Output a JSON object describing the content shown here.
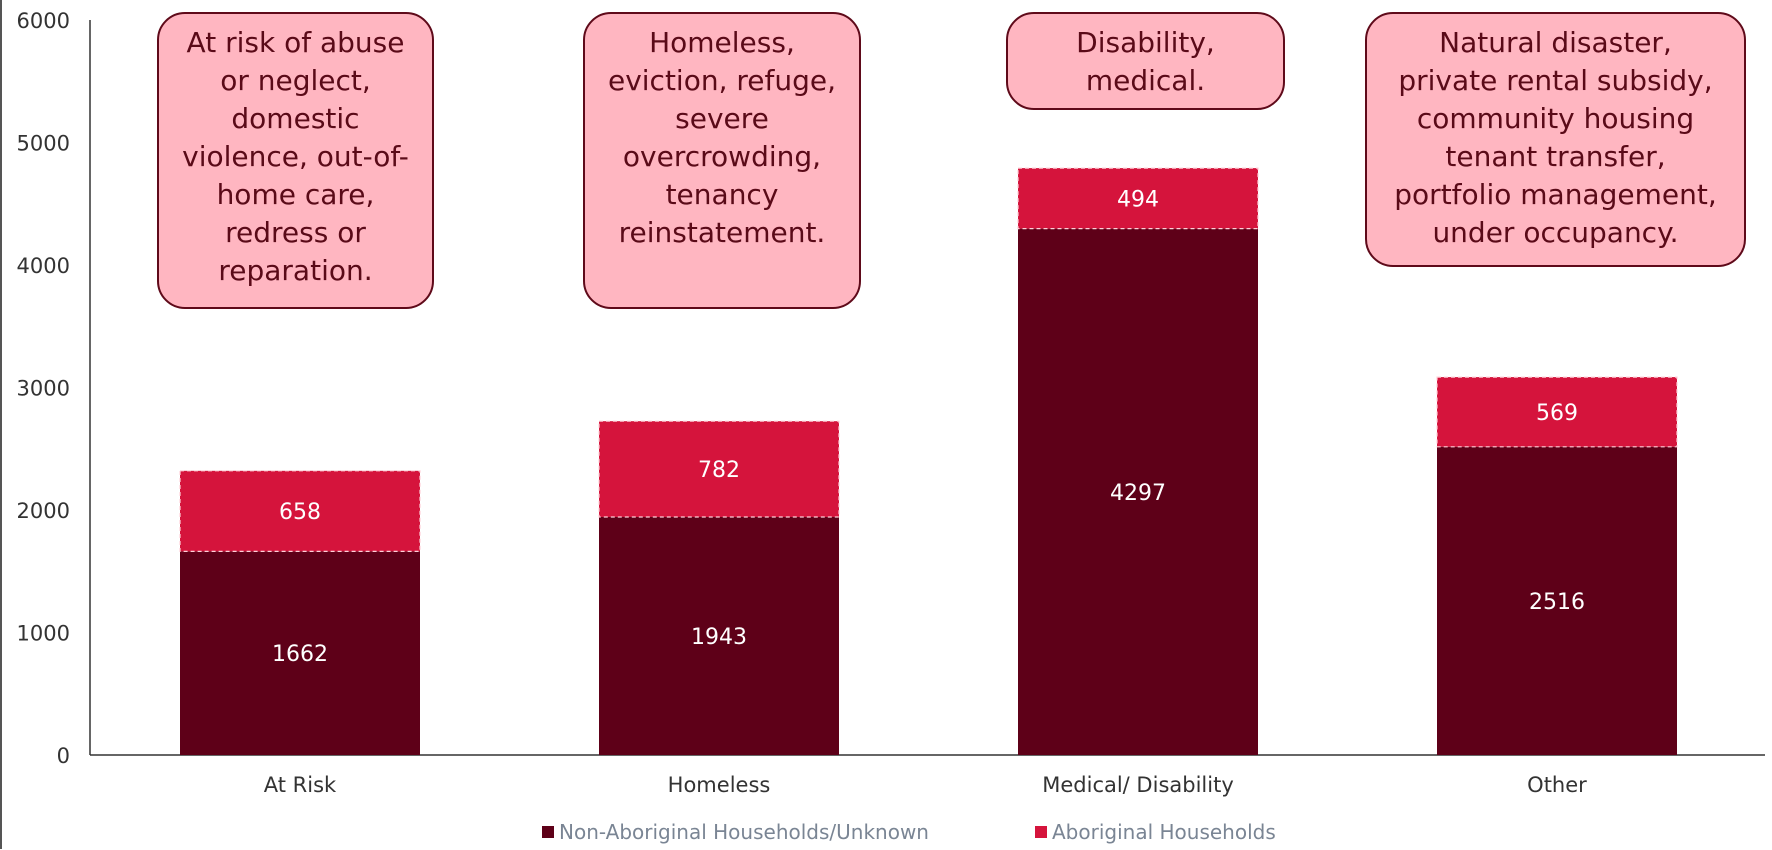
{
  "chart_data": {
    "type": "bar",
    "stacked": true,
    "categories": [
      "At Risk",
      "Homeless",
      "Medical/ Disability",
      "Other"
    ],
    "series": [
      {
        "name": "Non-Aboriginal Households/Unknown",
        "values": [
          1662,
          1943,
          4297,
          2516
        ],
        "color": "#5e0018"
      },
      {
        "name": "Aboriginal Households",
        "values": [
          658,
          782,
          494,
          569
        ],
        "color": "#d5143c"
      }
    ],
    "ylim": [
      0,
      6000
    ],
    "yticks": [
      "0",
      "1000",
      "2000",
      "3000",
      "4000",
      "5000",
      "6000"
    ],
    "grid": false,
    "legend_position": "bottom",
    "annotations": [
      "At risk of abuse\nor neglect,\ndomestic\nviolence, out-of-\nhome care,\nredress or\nreparation.",
      "Homeless,\neviction, refuge,\nsevere\novercrowding,\ntenancy\nreinstatement.",
      "Disability,\nmedical.",
      "Natural disaster,\nprivate rental subsidy,\ncommunity housing\ntenant transfer,\nportfolio management,\nunder occupancy."
    ]
  }
}
